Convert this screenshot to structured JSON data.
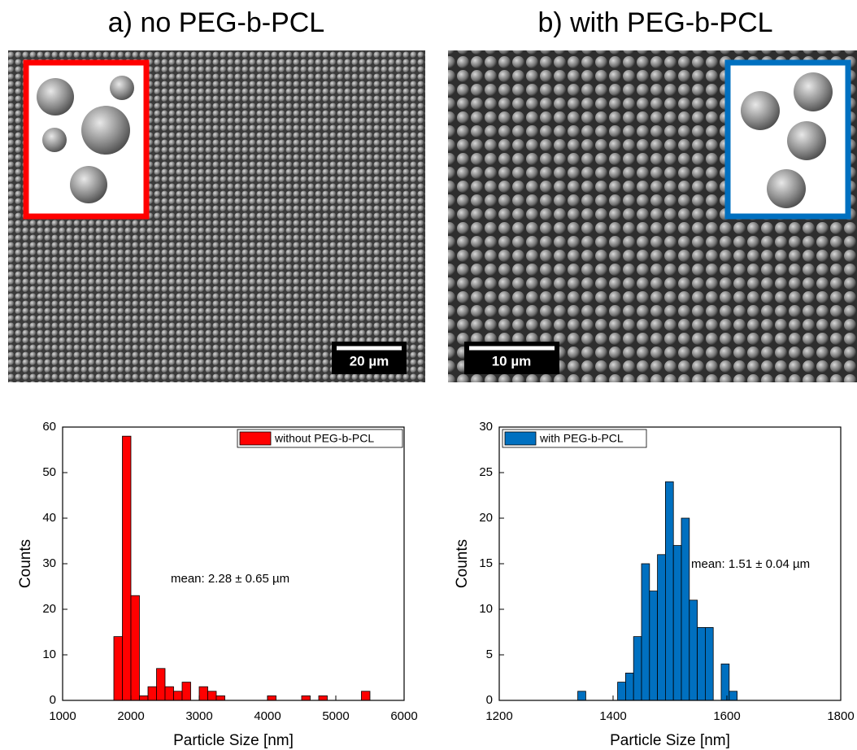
{
  "images": [
    {
      "title": "a) no PEG-b-PCL",
      "scale_bar": "20 µm"
    },
    {
      "title": "b) with PEG-b-PCL",
      "scale_bar": "10 µm"
    }
  ],
  "chart_data": [
    {
      "type": "histogram",
      "xlabel": "Particle Size [nm]",
      "ylabel": "Counts",
      "bins": [
        1750,
        1875,
        2000,
        2125,
        2250,
        2375,
        2500,
        2625,
        2750,
        2875,
        3000,
        3125,
        3250,
        3375,
        3500,
        3625,
        3750,
        3875,
        4000,
        4125,
        4250,
        4375,
        4500,
        4625,
        4750,
        4875,
        5000,
        5125,
        5250,
        5375,
        5500
      ],
      "series": [
        {
          "name": "without PEG-b-PCL",
          "color": "#ff0000",
          "values": [
            14,
            58,
            23,
            1,
            3,
            7,
            3,
            2,
            4,
            0,
            3,
            2,
            1,
            0,
            0,
            0,
            0,
            0,
            1,
            0,
            0,
            0,
            1,
            0,
            1,
            0,
            0,
            0,
            0,
            2
          ]
        }
      ],
      "xlim": [
        1000,
        6000
      ],
      "xticks": [
        1000,
        2000,
        3000,
        4000,
        5000,
        6000
      ],
      "ylim": [
        0,
        60
      ],
      "yticks": [
        0,
        10,
        20,
        30,
        40,
        50,
        60
      ],
      "annotation": "mean: 2.28 ± 0.65 µm",
      "legend": "upper right"
    },
    {
      "type": "histogram",
      "xlabel": "Particle Size [nm]",
      "ylabel": "Counts",
      "bins": [
        1338,
        1352,
        1366,
        1380,
        1394,
        1408,
        1422,
        1436,
        1450,
        1464,
        1478,
        1492,
        1506,
        1520,
        1534,
        1548,
        1562,
        1576,
        1590,
        1604,
        1618
      ],
      "series": [
        {
          "name": "with PEG-b-PCL",
          "color": "#0070c0",
          "values": [
            1,
            0,
            0,
            0,
            0,
            2,
            3,
            7,
            15,
            12,
            16,
            24,
            17,
            20,
            11,
            8,
            8,
            0,
            4,
            1
          ]
        }
      ],
      "xlim": [
        1200,
        1800
      ],
      "xticks": [
        1200,
        1400,
        1600,
        1800
      ],
      "ylim": [
        0,
        30
      ],
      "yticks": [
        0,
        5,
        10,
        15,
        20,
        25,
        30
      ],
      "annotation": "mean: 1.51 ± 0.04 µm",
      "legend": "upper left"
    }
  ]
}
